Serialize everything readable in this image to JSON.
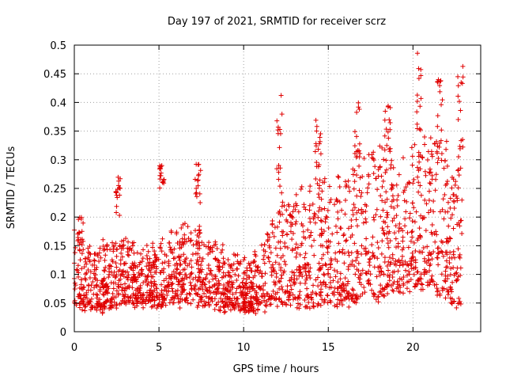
{
  "chart_data": {
    "type": "scatter",
    "title": "Day 197 of 2021, SRMTID for receiver scrz",
    "xlabel": "GPS time / hours",
    "ylabel": "SRMTID / TECUs",
    "xlim": [
      0,
      24
    ],
    "ylim": [
      0,
      0.5
    ],
    "grid": true,
    "marker": "+",
    "series_color": "#e00000",
    "x_ticks": [
      {
        "value": 0,
        "label": "0"
      },
      {
        "value": 5,
        "label": "5"
      },
      {
        "value": 10,
        "label": "10"
      },
      {
        "value": 15,
        "label": "15"
      },
      {
        "value": 20,
        "label": "20"
      }
    ],
    "y_ticks": [
      {
        "value": 0,
        "label": "0"
      },
      {
        "value": 0.05,
        "label": "0.05"
      },
      {
        "value": 0.1,
        "label": "0.1"
      },
      {
        "value": 0.15,
        "label": "0.15"
      },
      {
        "value": 0.2,
        "label": "0.2"
      },
      {
        "value": 0.25,
        "label": "0.25"
      },
      {
        "value": 0.3,
        "label": "0.3"
      },
      {
        "value": 0.35,
        "label": "0.35"
      },
      {
        "value": 0.4,
        "label": "0.4"
      },
      {
        "value": 0.45,
        "label": "0.45"
      },
      {
        "value": 0.5,
        "label": "0.5"
      }
    ],
    "envelope": {
      "description": "approximate lower/upper bounds of the point cloud per hour",
      "hours": [
        0,
        1,
        2,
        3,
        4,
        5,
        6,
        7,
        8,
        9,
        10,
        11,
        12,
        13,
        14,
        15,
        16,
        17,
        18,
        19,
        20,
        21,
        22,
        23
      ],
      "low": [
        0.05,
        0.04,
        0.04,
        0.05,
        0.05,
        0.05,
        0.05,
        0.05,
        0.05,
        0.04,
        0.04,
        0.04,
        0.05,
        0.05,
        0.05,
        0.05,
        0.05,
        0.06,
        0.06,
        0.07,
        0.08,
        0.08,
        0.06,
        0.04
      ],
      "high": [
        0.18,
        0.14,
        0.16,
        0.16,
        0.14,
        0.16,
        0.17,
        0.2,
        0.16,
        0.14,
        0.13,
        0.14,
        0.22,
        0.24,
        0.28,
        0.27,
        0.28,
        0.3,
        0.33,
        0.3,
        0.33,
        0.35,
        0.33,
        0.3
      ]
    },
    "spikes": [
      {
        "x": 0.35,
        "y_range": [
          0.15,
          0.2
        ]
      },
      {
        "x": 2.6,
        "y_range": [
          0.2,
          0.27
        ]
      },
      {
        "x": 5.2,
        "y_range": [
          0.25,
          0.29
        ]
      },
      {
        "x": 7.3,
        "y_range": [
          0.22,
          0.3
        ]
      },
      {
        "x": 12.1,
        "y_range": [
          0.24,
          0.42
        ]
      },
      {
        "x": 14.4,
        "y_range": [
          0.28,
          0.37
        ]
      },
      {
        "x": 16.7,
        "y_range": [
          0.3,
          0.4
        ]
      },
      {
        "x": 18.5,
        "y_range": [
          0.3,
          0.41
        ]
      },
      {
        "x": 20.4,
        "y_range": [
          0.3,
          0.5
        ]
      },
      {
        "x": 21.6,
        "y_range": [
          0.32,
          0.44
        ]
      },
      {
        "x": 22.8,
        "y_range": [
          0.3,
          0.47
        ]
      }
    ]
  }
}
